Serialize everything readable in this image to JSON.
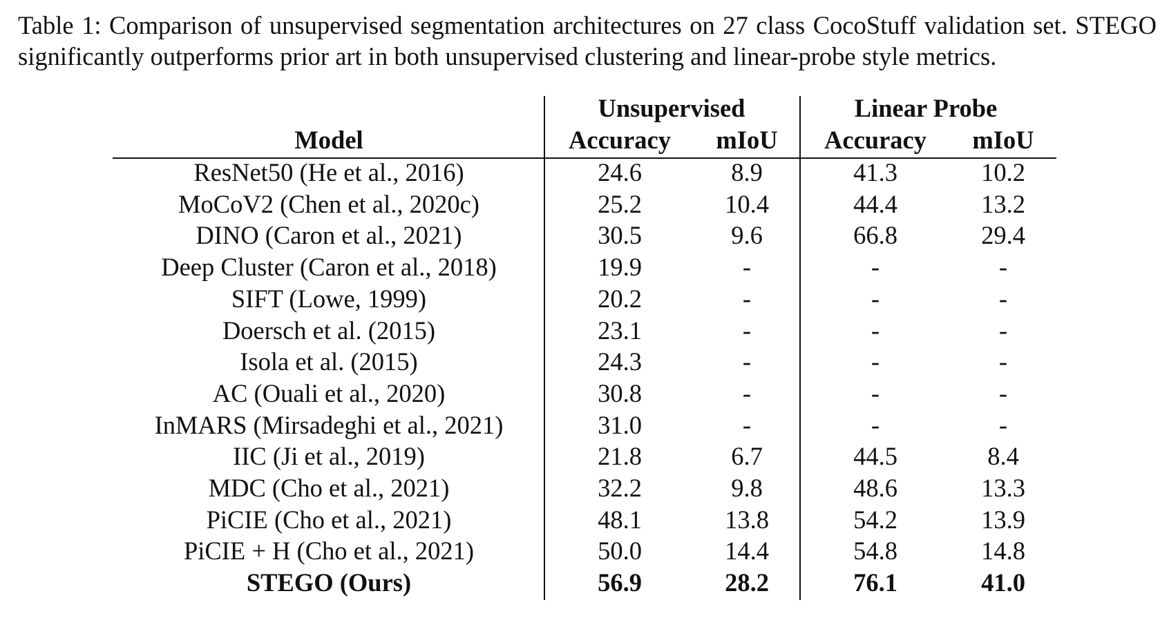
{
  "caption": "Table 1: Comparison of unsupervised segmentation architectures on 27 class CocoStuff validation set.  STEGO significantly outperforms prior art in both unsupervised clustering and linear-probe style metrics.",
  "table": {
    "group_headers": [
      "Unsupervised",
      "Linear Probe"
    ],
    "column_headers": [
      "Model",
      "Accuracy",
      "mIoU",
      "Accuracy",
      "mIoU"
    ],
    "rows": [
      {
        "model": "ResNet50 (He et al., 2016)",
        "u_acc": "24.6",
        "u_miou": "8.9",
        "l_acc": "41.3",
        "l_miou": "10.2"
      },
      {
        "model": "MoCoV2 (Chen et al., 2020c)",
        "u_acc": "25.2",
        "u_miou": "10.4",
        "l_acc": "44.4",
        "l_miou": "13.2"
      },
      {
        "model": "DINO (Caron et al., 2021)",
        "u_acc": "30.5",
        "u_miou": "9.6",
        "l_acc": "66.8",
        "l_miou": "29.4"
      },
      {
        "model": "Deep Cluster (Caron et al., 2018)",
        "u_acc": "19.9",
        "u_miou": "-",
        "l_acc": "-",
        "l_miou": "-"
      },
      {
        "model": "SIFT (Lowe, 1999)",
        "u_acc": "20.2",
        "u_miou": "-",
        "l_acc": "-",
        "l_miou": "-"
      },
      {
        "model": "Doersch et al. (2015)",
        "u_acc": "23.1",
        "u_miou": "-",
        "l_acc": "-",
        "l_miou": "-"
      },
      {
        "model": "Isola et al. (2015)",
        "u_acc": "24.3",
        "u_miou": "-",
        "l_acc": "-",
        "l_miou": "-"
      },
      {
        "model": "AC (Ouali et al., 2020)",
        "u_acc": "30.8",
        "u_miou": "-",
        "l_acc": "-",
        "l_miou": "-"
      },
      {
        "model": "InMARS (Mirsadeghi et al., 2021)",
        "u_acc": "31.0",
        "u_miou": "-",
        "l_acc": "-",
        "l_miou": "-"
      },
      {
        "model": "IIC (Ji et al., 2019)",
        "u_acc": "21.8",
        "u_miou": "6.7",
        "l_acc": "44.5",
        "l_miou": "8.4"
      },
      {
        "model": "MDC (Cho et al., 2021)",
        "u_acc": "32.2",
        "u_miou": "9.8",
        "l_acc": "48.6",
        "l_miou": "13.3"
      },
      {
        "model": "PiCIE (Cho et al., 2021)",
        "u_acc": "48.1",
        "u_miou": "13.8",
        "l_acc": "54.2",
        "l_miou": "13.9"
      },
      {
        "model": "PiCIE + H (Cho et al., 2021)",
        "u_acc": "50.0",
        "u_miou": "14.4",
        "l_acc": "54.8",
        "l_miou": "14.8"
      },
      {
        "model": "STEGO (Ours)",
        "u_acc": "56.9",
        "u_miou": "28.2",
        "l_acc": "76.1",
        "l_miou": "41.0",
        "bold": true
      }
    ]
  }
}
